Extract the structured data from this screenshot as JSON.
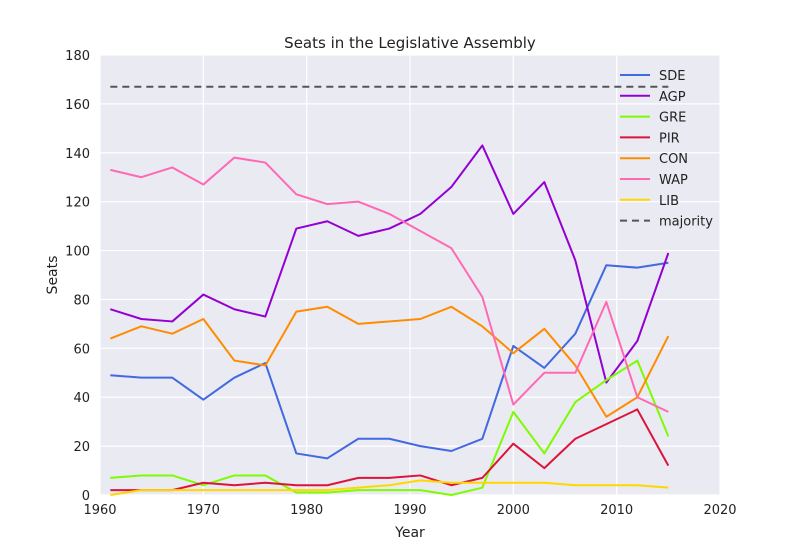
{
  "chart_data": {
    "type": "line",
    "title": "Seats in the Legislative Assembly",
    "xlabel": "Year",
    "ylabel": "Seats",
    "xlim": [
      1960,
      2020
    ],
    "ylim": [
      0,
      180
    ],
    "xticks": [
      1960,
      1970,
      1980,
      1990,
      2000,
      2010,
      2020
    ],
    "yticks": [
      0,
      20,
      40,
      60,
      80,
      100,
      120,
      140,
      160,
      180
    ],
    "grid": true,
    "legend_position": "top-right",
    "x": [
      1961,
      1964,
      1967,
      1970,
      1973,
      1976,
      1979,
      1982,
      1985,
      1988,
      1991,
      1994,
      1997,
      2000,
      2003,
      2006,
      2009,
      2012,
      2015
    ],
    "series": [
      {
        "name": "SDE",
        "color": "#4169e1",
        "values": [
          49,
          48,
          48,
          39,
          48,
          54,
          17,
          15,
          23,
          23,
          20,
          18,
          23,
          61,
          52,
          66,
          94,
          93,
          95
        ]
      },
      {
        "name": "AGP",
        "color": "#9400d3",
        "values": [
          76,
          72,
          71,
          82,
          76,
          73,
          109,
          112,
          106,
          109,
          115,
          126,
          143,
          115,
          128,
          96,
          46,
          63,
          99
        ]
      },
      {
        "name": "GRE",
        "color": "#7cfc00",
        "values": [
          7,
          8,
          8,
          4,
          8,
          8,
          1,
          1,
          2,
          2,
          2,
          0,
          3,
          34,
          17,
          38,
          47,
          55,
          24
        ]
      },
      {
        "name": "PIR",
        "color": "#dc143c",
        "values": [
          2,
          2,
          2,
          5,
          4,
          5,
          4,
          4,
          7,
          7,
          8,
          4,
          7,
          21,
          11,
          23,
          29,
          35,
          12
        ]
      },
      {
        "name": "CON",
        "color": "#ff8c00",
        "values": [
          64,
          69,
          66,
          72,
          55,
          53,
          75,
          77,
          70,
          71,
          72,
          77,
          69,
          58,
          68,
          53,
          32,
          40,
          65
        ]
      },
      {
        "name": "WAP",
        "color": "#ff69b4",
        "values": [
          133,
          130,
          134,
          127,
          138,
          136,
          123,
          119,
          120,
          115,
          108,
          101,
          81,
          37,
          50,
          50,
          79,
          40,
          34
        ]
      },
      {
        "name": "LIB",
        "color": "#ffd700",
        "values": [
          0,
          2,
          2,
          2,
          2,
          2,
          2,
          2,
          3,
          4,
          6,
          5,
          5,
          5,
          5,
          4,
          4,
          4,
          3
        ]
      }
    ],
    "reference_lines": [
      {
        "name": "majority",
        "y": 167,
        "color": "#555555",
        "style": "dashed"
      }
    ],
    "style": {
      "plot_background": "#eaeaf2",
      "grid_color": "#ffffff"
    }
  }
}
